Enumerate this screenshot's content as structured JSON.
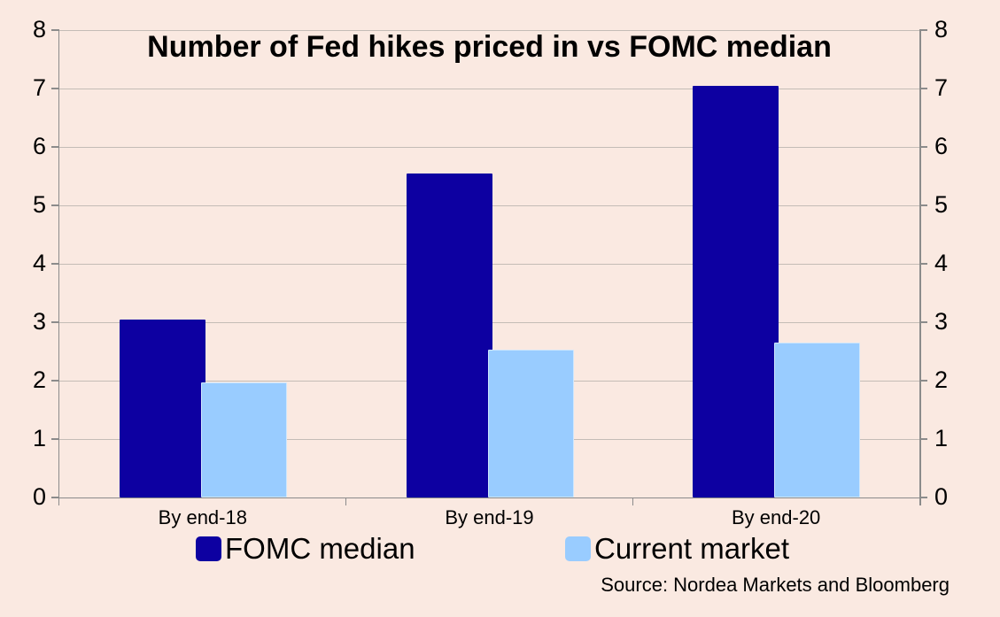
{
  "chart_data": {
    "type": "bar",
    "title": "Number of Fed hikes priced in vs FOMC median",
    "categories": [
      "By end-18",
      "By end-19",
      "By end-20"
    ],
    "series": [
      {
        "name": "FOMC median",
        "color": "#0d00a1",
        "values": [
          3.05,
          5.55,
          7.05
        ]
      },
      {
        "name": "Current market",
        "color": "#99ccff",
        "values": [
          1.97,
          2.53,
          2.65
        ]
      }
    ],
    "ylim": [
      0,
      8
    ],
    "yticks": [
      0,
      1,
      2,
      3,
      4,
      5,
      6,
      7,
      8
    ],
    "y_axis_sides": "both",
    "grid": true,
    "legend_position": "bottom",
    "source": "Source: Nordea Markets and Bloomberg"
  },
  "palette": {
    "background": "#fae9e1",
    "gridline": "#c4bcb6",
    "axis": "#8b8b8b",
    "light_bar_border": "#cfe7fd",
    "text": "#000000"
  }
}
